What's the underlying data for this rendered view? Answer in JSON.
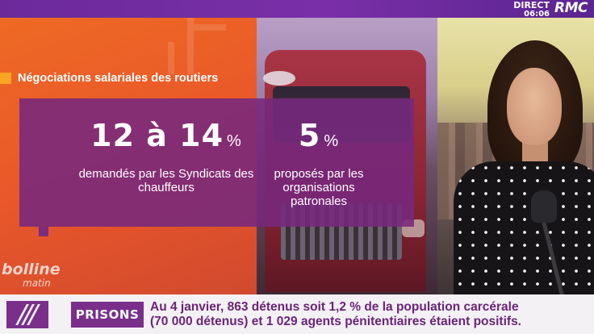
{
  "channel": {
    "live_label": "DIRECT",
    "time": "06:06",
    "name": "RMC"
  },
  "infographic": {
    "title": "Négociations salariales des routiers",
    "items": [
      {
        "value": "12 à 14",
        "unit": "%",
        "description": "demandés par les Syndicats des chauffeurs"
      },
      {
        "value": "5",
        "unit": "%",
        "description": "proposés par les organisations patronales"
      }
    ]
  },
  "show": {
    "name_line1": "bolline",
    "name_line2": "matin"
  },
  "ticker": {
    "tag": "PRISONS",
    "text": "Au 4 janvier, 863 détenus soit 1,2 % de la population carcérale (70 000 détenus) et 1 029 agents pénitentiaires étaient positifs."
  },
  "colors": {
    "brand_purple": "#7a2f8b",
    "orange": "#e9572a",
    "accent_yellow": "#f6a623"
  }
}
